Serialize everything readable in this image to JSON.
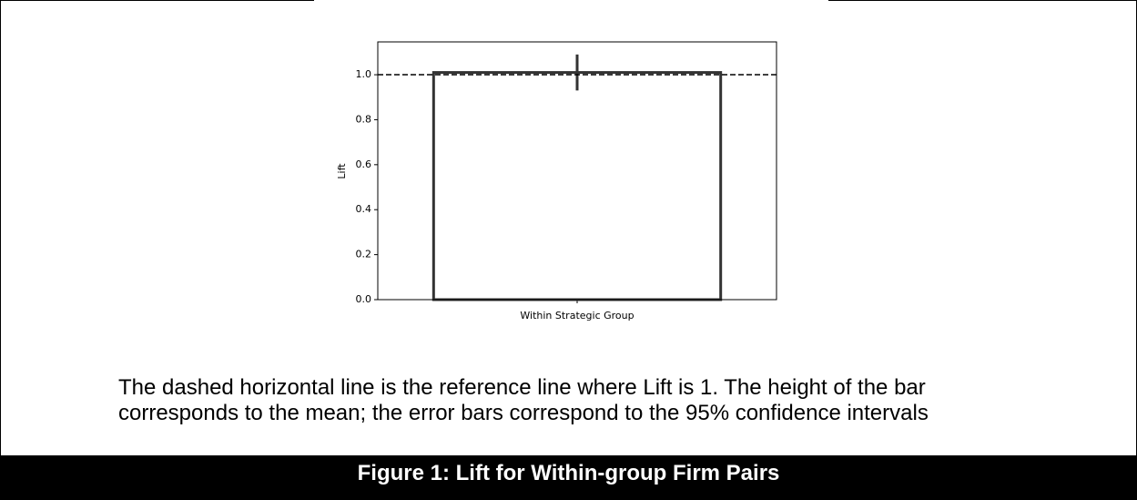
{
  "chart_data": {
    "type": "bar",
    "categories": [
      "Within Strategic Group"
    ],
    "values": [
      1.01
    ],
    "errors": [
      0.08
    ],
    "color": "#ffffff",
    "edgecolor": "#333333",
    "ylabel": "Lift",
    "ylim": [
      0,
      1.146
    ],
    "yticks": [
      {
        "value": 0,
        "label": "0.0"
      },
      {
        "value": 0.2,
        "label": "0.2"
      },
      {
        "value": 0.4,
        "label": "0.4"
      },
      {
        "value": 0.6,
        "label": "0.6"
      },
      {
        "value": 0.8,
        "label": "0.8"
      },
      {
        "value": 1,
        "label": "1.0"
      }
    ],
    "hline": 1
  },
  "caption": "The dashed horizontal line is the reference line where Lift is 1. The height of the bar corresponds to the mean; the error bars correspond to the 95% confidence intervals",
  "figure_title": "Figure 1: Lift for Within-group Firm Pairs"
}
